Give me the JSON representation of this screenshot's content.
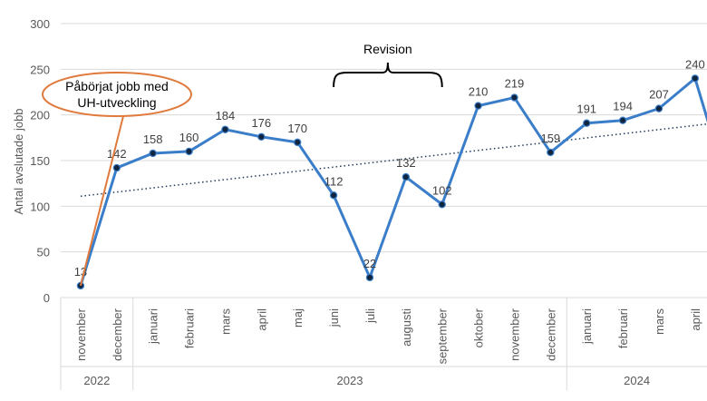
{
  "chart_data": {
    "type": "line",
    "title": "",
    "xlabel": "",
    "ylabel": "Antal avslutade jobb",
    "ylim": [
      0,
      300
    ],
    "yticks": [
      0,
      50,
      100,
      150,
      200,
      250,
      300
    ],
    "grid": true,
    "legend": "none",
    "categories": [
      "november",
      "december",
      "januari",
      "februari",
      "mars",
      "april",
      "maj",
      "juni",
      "juli",
      "augusti",
      "september",
      "oktober",
      "november",
      "december",
      "januari",
      "februari",
      "mars",
      "april"
    ],
    "year_groups": [
      {
        "label": "2022",
        "count": 2
      },
      {
        "label": "2023",
        "count": 12
      },
      {
        "label": "2024",
        "count": 4
      }
    ],
    "series": [
      {
        "name": "",
        "values": [
          13,
          142,
          158,
          160,
          184,
          176,
          170,
          112,
          22,
          132,
          102,
          210,
          219,
          159,
          191,
          194,
          207,
          240
        ],
        "color": "#3a7dc9"
      }
    ],
    "trendline": {
      "type": "linear",
      "style": "dotted",
      "start": 111,
      "end": 190,
      "color": "#1f3b5c"
    },
    "annotations": {
      "callout_text": "Påbörjat jobb med UH-utveckling",
      "callout_line1": "Påbörjat jobb med",
      "callout_line2": "UH-utveckling",
      "callout_color": "#e07a3c",
      "bracket_label": "Revision",
      "bracket_from": "juni",
      "bracket_to": "september"
    }
  }
}
